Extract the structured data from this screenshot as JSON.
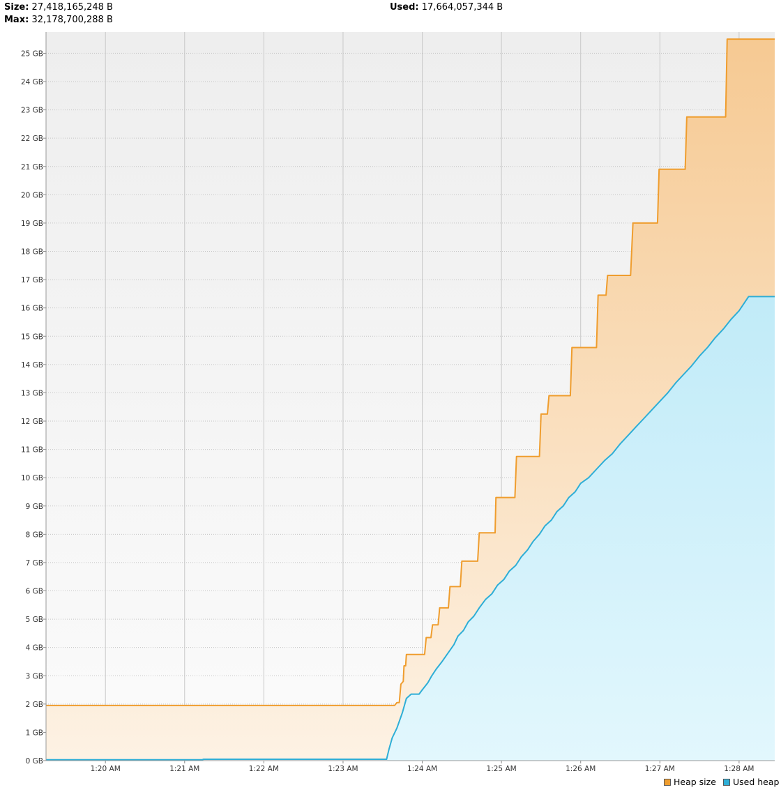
{
  "stats": {
    "size_label": "Size:",
    "size_value": "27,418,165,248 B",
    "max_label": "Max:",
    "max_value": "32,178,700,288 B",
    "used_label": "Used:",
    "used_value": "17,664,057,344 B"
  },
  "colors": {
    "heap_line": "#ef9d2e",
    "used_line": "#2eaed6",
    "heap_fill_top": "#f6c992",
    "heap_fill_bottom": "#fdf2e4",
    "used_fill_top": "#aee4f5",
    "used_fill_bottom": "#e2f7fd",
    "bg_top": "#eeeeee",
    "bg_bottom": "#fbfbfb"
  },
  "chart_data": {
    "type": "area",
    "ylim": [
      0,
      25.75
    ],
    "y_ticks": [
      "0 GB",
      "1 GB",
      "2 GB",
      "3 GB",
      "4 GB",
      "5 GB",
      "6 GB",
      "7 GB",
      "8 GB",
      "9 GB",
      "10 GB",
      "11 GB",
      "12 GB",
      "13 GB",
      "14 GB",
      "15 GB",
      "16 GB",
      "17 GB",
      "18 GB",
      "19 GB",
      "20 GB",
      "21 GB",
      "22 GB",
      "23 GB",
      "24 GB",
      "25 GB"
    ],
    "x_ticks": [
      "1:20 AM",
      "1:21 AM",
      "1:22 AM",
      "1:23 AM",
      "1:24 AM",
      "1:25 AM",
      "1:26 AM",
      "1:27 AM",
      "1:28 AM"
    ],
    "x_tick_minutes": [
      80,
      81,
      82,
      83,
      84,
      85,
      86,
      87,
      88
    ],
    "xlim_minutes": [
      79.25,
      88.45
    ],
    "legend": [
      {
        "name": "Heap size"
      },
      {
        "name": "Used heap"
      }
    ],
    "series": [
      {
        "name": "Heap size",
        "points": [
          [
            79.25,
            1.95
          ],
          [
            83.65,
            1.95
          ],
          [
            83.68,
            2.05
          ],
          [
            83.71,
            2.05
          ],
          [
            83.73,
            2.7
          ],
          [
            83.76,
            2.8
          ],
          [
            83.77,
            3.35
          ],
          [
            83.79,
            3.35
          ],
          [
            83.8,
            3.75
          ],
          [
            84.03,
            3.75
          ],
          [
            84.05,
            4.35
          ],
          [
            84.11,
            4.35
          ],
          [
            84.13,
            4.8
          ],
          [
            84.2,
            4.8
          ],
          [
            84.22,
            5.4
          ],
          [
            84.33,
            5.4
          ],
          [
            84.35,
            6.15
          ],
          [
            84.48,
            6.15
          ],
          [
            84.5,
            7.05
          ],
          [
            84.7,
            7.05
          ],
          [
            84.72,
            8.05
          ],
          [
            84.92,
            8.05
          ],
          [
            84.93,
            9.3
          ],
          [
            85.17,
            9.3
          ],
          [
            85.19,
            10.75
          ],
          [
            85.48,
            10.75
          ],
          [
            85.5,
            12.25
          ],
          [
            85.58,
            12.25
          ],
          [
            85.6,
            12.9
          ],
          [
            85.87,
            12.9
          ],
          [
            85.89,
            14.6
          ],
          [
            86.2,
            14.6
          ],
          [
            86.22,
            16.45
          ],
          [
            86.32,
            16.45
          ],
          [
            86.34,
            17.15
          ],
          [
            86.63,
            17.15
          ],
          [
            86.66,
            19.0
          ],
          [
            86.97,
            19.0
          ],
          [
            86.99,
            20.9
          ],
          [
            87.32,
            20.9
          ],
          [
            87.34,
            22.75
          ],
          [
            87.83,
            22.75
          ],
          [
            87.85,
            25.5
          ],
          [
            88.45,
            25.5
          ]
        ]
      },
      {
        "name": "Used heap",
        "points": [
          [
            79.25,
            0.03
          ],
          [
            81.22,
            0.03
          ],
          [
            81.24,
            0.05
          ],
          [
            83.55,
            0.05
          ],
          [
            83.58,
            0.4
          ],
          [
            83.62,
            0.8
          ],
          [
            83.68,
            1.15
          ],
          [
            83.75,
            1.7
          ],
          [
            83.8,
            2.2
          ],
          [
            83.86,
            2.35
          ],
          [
            83.96,
            2.35
          ],
          [
            84.0,
            2.5
          ],
          [
            84.07,
            2.75
          ],
          [
            84.12,
            3.0
          ],
          [
            84.18,
            3.25
          ],
          [
            84.25,
            3.5
          ],
          [
            84.3,
            3.7
          ],
          [
            84.35,
            3.9
          ],
          [
            84.4,
            4.1
          ],
          [
            84.45,
            4.4
          ],
          [
            84.52,
            4.6
          ],
          [
            84.58,
            4.9
          ],
          [
            84.65,
            5.1
          ],
          [
            84.72,
            5.4
          ],
          [
            84.8,
            5.7
          ],
          [
            84.88,
            5.9
          ],
          [
            84.95,
            6.2
          ],
          [
            85.03,
            6.4
          ],
          [
            85.1,
            6.7
          ],
          [
            85.18,
            6.9
          ],
          [
            85.25,
            7.2
          ],
          [
            85.33,
            7.45
          ],
          [
            85.4,
            7.75
          ],
          [
            85.48,
            8.0
          ],
          [
            85.55,
            8.3
          ],
          [
            85.63,
            8.5
          ],
          [
            85.7,
            8.8
          ],
          [
            85.78,
            9.0
          ],
          [
            85.85,
            9.3
          ],
          [
            85.93,
            9.5
          ],
          [
            86.0,
            9.8
          ],
          [
            86.1,
            10.0
          ],
          [
            86.2,
            10.3
          ],
          [
            86.3,
            10.6
          ],
          [
            86.4,
            10.85
          ],
          [
            86.5,
            11.2
          ],
          [
            86.6,
            11.5
          ],
          [
            86.7,
            11.8
          ],
          [
            86.8,
            12.1
          ],
          [
            86.9,
            12.4
          ],
          [
            87.0,
            12.7
          ],
          [
            87.1,
            13.0
          ],
          [
            87.2,
            13.35
          ],
          [
            87.3,
            13.65
          ],
          [
            87.4,
            13.95
          ],
          [
            87.5,
            14.3
          ],
          [
            87.6,
            14.6
          ],
          [
            87.7,
            14.95
          ],
          [
            87.8,
            15.25
          ],
          [
            87.9,
            15.6
          ],
          [
            88.0,
            15.9
          ],
          [
            88.12,
            16.4
          ],
          [
            88.45,
            16.4
          ]
        ]
      }
    ]
  }
}
